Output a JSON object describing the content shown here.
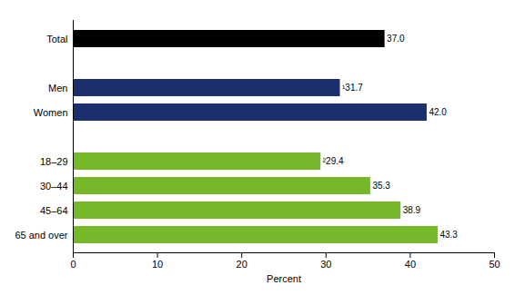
{
  "chart_data": {
    "type": "bar",
    "orientation": "horizontal",
    "categories": [
      "Total",
      null,
      "Men",
      "Women",
      null,
      "18–29",
      "30–44",
      "45–64",
      "65 and over"
    ],
    "values": [
      37.0,
      null,
      31.7,
      42.0,
      null,
      29.4,
      35.3,
      38.9,
      43.3
    ],
    "value_labels": [
      "37.0",
      null,
      "¹31.7",
      "42.0",
      null,
      "²29.4",
      "35.3",
      "38.9",
      "43.3"
    ],
    "colors": [
      "#000000",
      null,
      "#1b2f6e",
      "#1b2f6e",
      null,
      "#76b82a",
      "#76b82a",
      "#76b82a",
      "#76b82a"
    ],
    "x_label": "Percent",
    "xlim": [
      0,
      50
    ],
    "xticks": [
      0,
      10,
      20,
      30,
      40,
      50
    ],
    "grid": false,
    "data_labels": true
  }
}
